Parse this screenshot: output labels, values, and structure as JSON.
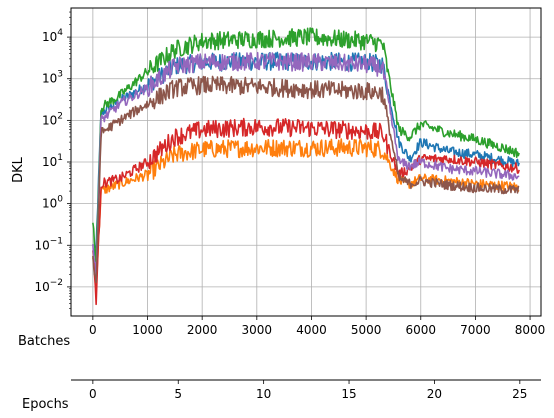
{
  "chart_data": {
    "type": "line",
    "ylabel": "DKL",
    "y_scale": "log",
    "ylim": [
      0.002,
      50000
    ],
    "y_ticks": [
      {
        "value": 0.01,
        "mantissa": "10",
        "exp": "−2"
      },
      {
        "value": 0.1,
        "mantissa": "10",
        "exp": "−1"
      },
      {
        "value": 1,
        "mantissa": "10",
        "exp": "0"
      },
      {
        "value": 10,
        "mantissa": "10",
        "exp": "1"
      },
      {
        "value": 100,
        "mantissa": "10",
        "exp": "2"
      },
      {
        "value": 1000,
        "mantissa": "10",
        "exp": "3"
      },
      {
        "value": 10000,
        "mantissa": "10",
        "exp": "4"
      }
    ],
    "x_axes": {
      "batches": {
        "label": "Batches",
        "xlim": [
          -400,
          8200
        ],
        "ticks": [
          0,
          1000,
          2000,
          3000,
          4000,
          5000,
          6000,
          7000,
          8000
        ]
      },
      "epochs": {
        "label": "Epochs",
        "xlim": [
          -1.28,
          26.24
        ],
        "ticks": [
          0,
          5,
          10,
          15,
          20,
          25
        ]
      }
    },
    "grid": true,
    "legend": "none",
    "series": [
      {
        "color": "#1f77b4",
        "points": [
          [
            0,
            0.05
          ],
          [
            60,
            0.08
          ],
          [
            150,
            150
          ],
          [
            500,
            300
          ],
          [
            1000,
            700
          ],
          [
            1500,
            2000
          ],
          [
            2000,
            2500
          ],
          [
            3000,
            2600
          ],
          [
            4000,
            2600
          ],
          [
            5000,
            2500
          ],
          [
            5300,
            2200
          ],
          [
            5600,
            30
          ],
          [
            5800,
            12
          ],
          [
            6000,
            30
          ],
          [
            6500,
            18
          ],
          [
            7000,
            15
          ],
          [
            7500,
            11
          ],
          [
            7800,
            9
          ]
        ]
      },
      {
        "color": "#ff7f0e",
        "points": [
          [
            0,
            0.06
          ],
          [
            60,
            0.01
          ],
          [
            150,
            2
          ],
          [
            500,
            3
          ],
          [
            1000,
            5
          ],
          [
            1500,
            15
          ],
          [
            2000,
            20
          ],
          [
            3000,
            22
          ],
          [
            4000,
            22
          ],
          [
            5000,
            22
          ],
          [
            5300,
            20
          ],
          [
            5600,
            3.5
          ],
          [
            5800,
            3
          ],
          [
            6000,
            4
          ],
          [
            6500,
            3.5
          ],
          [
            7000,
            3
          ],
          [
            7500,
            2.7
          ],
          [
            7800,
            2.5
          ]
        ]
      },
      {
        "color": "#2ca02c",
        "points": [
          [
            0,
            0.4
          ],
          [
            60,
            0.03
          ],
          [
            150,
            200
          ],
          [
            500,
            400
          ],
          [
            1000,
            1500
          ],
          [
            1500,
            5000
          ],
          [
            2000,
            8000
          ],
          [
            3000,
            9000
          ],
          [
            4000,
            10000
          ],
          [
            5000,
            8000
          ],
          [
            5300,
            7000
          ],
          [
            5600,
            60
          ],
          [
            5800,
            40
          ],
          [
            6000,
            80
          ],
          [
            6500,
            50
          ],
          [
            7000,
            35
          ],
          [
            7500,
            22
          ],
          [
            7800,
            16
          ]
        ]
      },
      {
        "color": "#d62728",
        "points": [
          [
            0,
            0.08
          ],
          [
            60,
            0.005
          ],
          [
            150,
            3
          ],
          [
            500,
            4
          ],
          [
            1000,
            10
          ],
          [
            1500,
            40
          ],
          [
            2000,
            60
          ],
          [
            3000,
            70
          ],
          [
            4000,
            65
          ],
          [
            5000,
            55
          ],
          [
            5300,
            50
          ],
          [
            5600,
            5
          ],
          [
            5800,
            7
          ],
          [
            6000,
            12
          ],
          [
            6500,
            12
          ],
          [
            7000,
            10
          ],
          [
            7500,
            8
          ],
          [
            7800,
            7
          ]
        ]
      },
      {
        "color": "#9467bd",
        "points": [
          [
            0,
            0.1
          ],
          [
            60,
            0.02
          ],
          [
            150,
            100
          ],
          [
            500,
            250
          ],
          [
            1000,
            600
          ],
          [
            1500,
            2000
          ],
          [
            2000,
            2500
          ],
          [
            3000,
            2600
          ],
          [
            4000,
            2500
          ],
          [
            5000,
            2200
          ],
          [
            5300,
            1800
          ],
          [
            5600,
            10
          ],
          [
            5800,
            8
          ],
          [
            6000,
            10
          ],
          [
            6500,
            7
          ],
          [
            7000,
            6
          ],
          [
            7500,
            5
          ],
          [
            7800,
            4.5
          ]
        ]
      },
      {
        "color": "#8c564b",
        "points": [
          [
            0,
            0.05
          ],
          [
            60,
            0.01
          ],
          [
            150,
            50
          ],
          [
            500,
            100
          ],
          [
            1000,
            250
          ],
          [
            1500,
            600
          ],
          [
            2000,
            700
          ],
          [
            3000,
            650
          ],
          [
            4000,
            550
          ],
          [
            5000,
            500
          ],
          [
            5300,
            450
          ],
          [
            5600,
            4
          ],
          [
            5800,
            3
          ],
          [
            6000,
            3.5
          ],
          [
            6500,
            2.8
          ],
          [
            7000,
            2.4
          ],
          [
            7500,
            2.2
          ],
          [
            7800,
            2.1
          ]
        ]
      }
    ]
  }
}
